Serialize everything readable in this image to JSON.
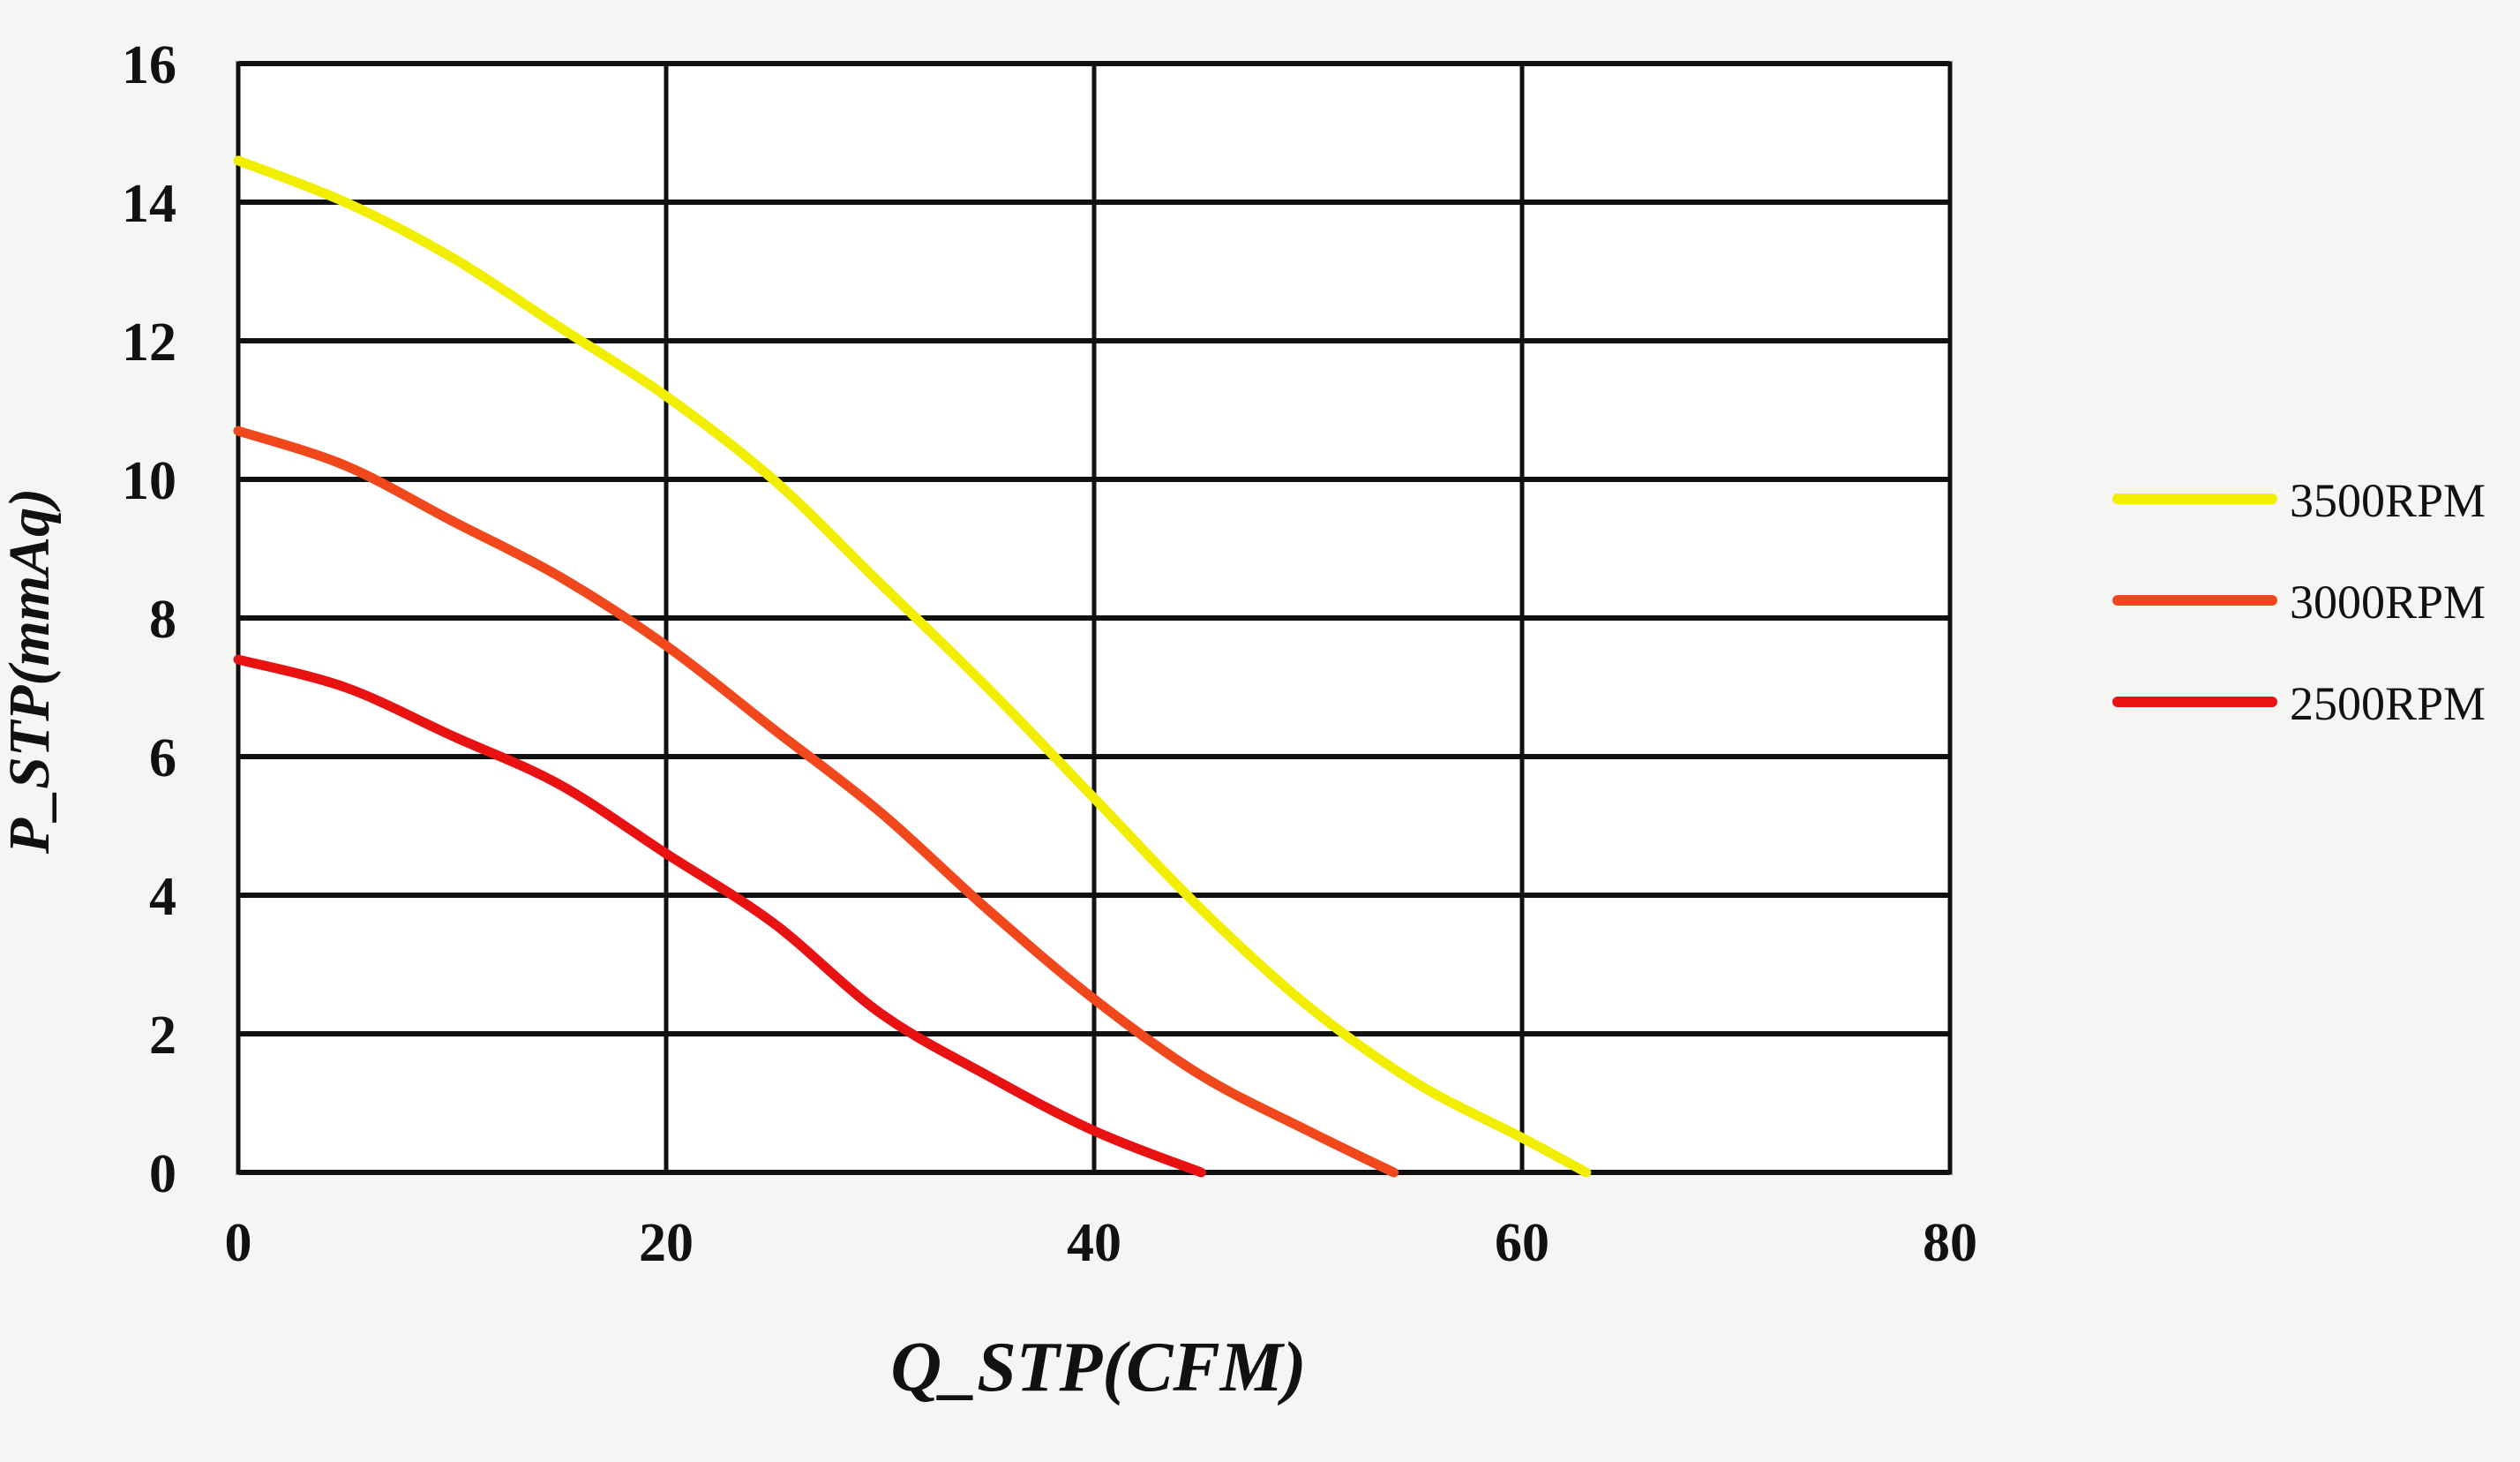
{
  "chart_data": {
    "type": "line",
    "title": "",
    "xlabel": "Q_STP(CFM)",
    "ylabel": "P_STP(mmAq)",
    "xlim": [
      0,
      80
    ],
    "ylim": [
      0,
      16
    ],
    "xticks": [
      0,
      20,
      40,
      60,
      80
    ],
    "yticks": [
      0,
      2,
      4,
      6,
      8,
      10,
      12,
      14,
      16
    ],
    "grid": true,
    "legend_position": "right",
    "series": [
      {
        "name": "3500RPM",
        "color": "#f2ee00",
        "x": [
          0,
          5,
          10,
          15,
          20,
          25,
          30,
          35,
          40,
          45,
          50,
          55,
          60,
          63
        ],
        "y": [
          14.6,
          14.0,
          13.2,
          12.2,
          11.2,
          10.0,
          8.5,
          7.0,
          5.4,
          3.8,
          2.4,
          1.3,
          0.5,
          0
        ]
      },
      {
        "name": "3000RPM",
        "color": "#f0481c",
        "x": [
          0,
          5,
          10,
          15,
          20,
          25,
          30,
          35,
          40,
          45,
          50,
          54
        ],
        "y": [
          10.7,
          10.2,
          9.4,
          8.6,
          7.6,
          6.4,
          5.2,
          3.8,
          2.5,
          1.4,
          0.6,
          0
        ]
      },
      {
        "name": "2500RPM",
        "color": "#e81212",
        "x": [
          0,
          5,
          10,
          15,
          20,
          25,
          30,
          35,
          40,
          45
        ],
        "y": [
          7.4,
          7.0,
          6.3,
          5.6,
          4.6,
          3.6,
          2.3,
          1.4,
          0.6,
          0
        ]
      }
    ]
  }
}
